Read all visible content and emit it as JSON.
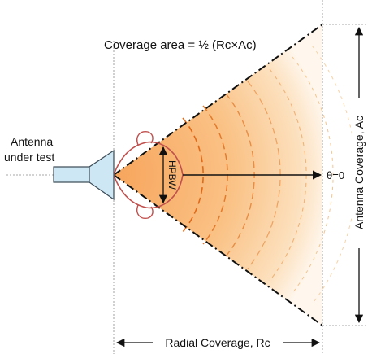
{
  "diagram": {
    "title": "Coverage area = ½ (Rc×Ac)",
    "antenna_label_line1": "Antenna",
    "antenna_label_line2": "under test",
    "hpbw_label": "HPBW",
    "angle_label": "θ=0",
    "radial_label": "Radial Coverage, Rc",
    "antenna_coverage_label": "Antenna Coverage, Ac"
  },
  "colors": {
    "gradient_inner": "#f7a55c",
    "gradient_outer": "#fdf0dc",
    "arc_inner": "#e06a1a",
    "arc_outer": "#f1b070",
    "lobe_stroke": "#c0504d",
    "horn_fill": "#cde7f4",
    "horn_stroke": "#3a4a55",
    "guide_line": "#8a8a8a",
    "arrow": "#111111"
  }
}
